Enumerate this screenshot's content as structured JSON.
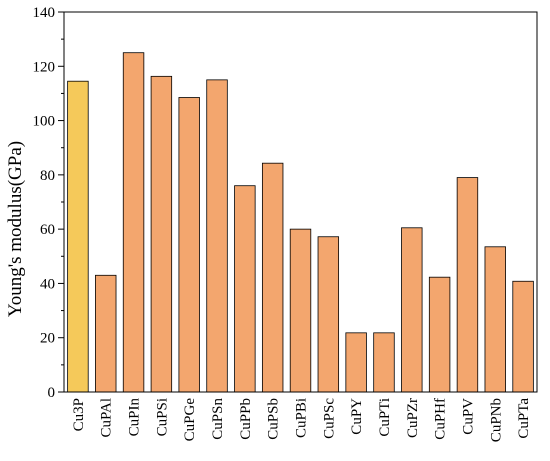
{
  "chart_data": {
    "type": "bar",
    "title": "",
    "xlabel": "",
    "ylabel": "Young's modulus(GPa)",
    "ylim": [
      0,
      140
    ],
    "yticks": [
      0,
      20,
      40,
      60,
      80,
      100,
      120,
      140
    ],
    "grid": false,
    "legend": "none",
    "categories": [
      "Cu3P",
      "CuPAl",
      "CuPIn",
      "CuPSi",
      "CuPGe",
      "CuPSn",
      "CuPPb",
      "CuPSb",
      "CuPBi",
      "CuPSc",
      "CuPY",
      "CuPTi",
      "CuPZr",
      "CuPHf",
      "CuPV",
      "CuPNb",
      "CuPTa"
    ],
    "values": [
      114.5,
      43,
      125,
      116.3,
      108.5,
      115,
      76,
      84.3,
      60,
      57.2,
      21.8,
      21.8,
      60.5,
      42.3,
      79,
      53.5,
      40.8
    ],
    "colors": {
      "highlight": "#f5c95a",
      "bar": "#f3a66e",
      "edge": "#000000"
    },
    "highlight_index": 0
  }
}
